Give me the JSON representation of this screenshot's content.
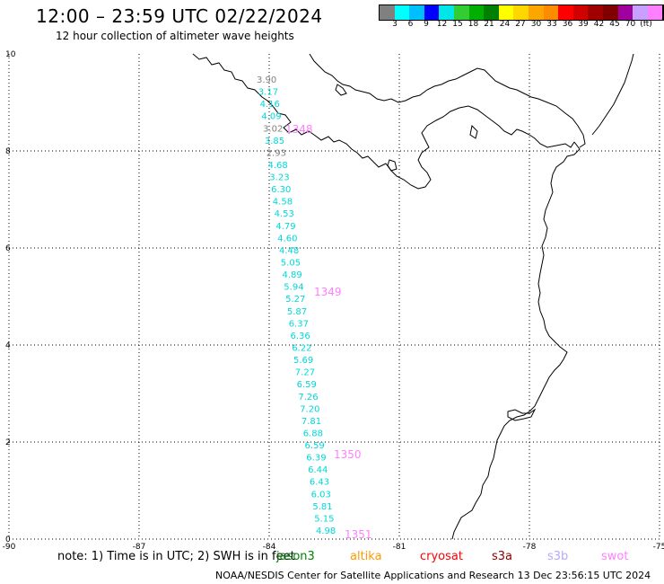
{
  "header": {
    "title": "12:00 – 23:59 UTC 02/22/2024",
    "subtitle": "12 hour collection of altimeter wave heights"
  },
  "scale": {
    "colors": [
      "#808080",
      "#00ffff",
      "#00bfff",
      "#0000ff",
      "#00e5e5",
      "#32cd32",
      "#00b000",
      "#008000",
      "#ffff00",
      "#ffd700",
      "#ffa500",
      "#ff8c00",
      "#ff0000",
      "#d00000",
      "#a00000",
      "#800000",
      "#a000a0",
      "#c8a0ff",
      "#ff80ff",
      "#000000"
    ],
    "labels": [
      "3",
      "6",
      "9",
      "12",
      "15",
      "18",
      "21",
      "24",
      "27",
      "30",
      "33",
      "36",
      "39",
      "42",
      "45",
      "70",
      "(ft)"
    ]
  },
  "axes": {
    "x_ticks": [
      "-90",
      "-87",
      "-84",
      "-81",
      "-78",
      "-75"
    ],
    "y_ticks": [
      "10",
      "8",
      "6",
      "4",
      "2",
      "0"
    ]
  },
  "wave_heights": [
    {
      "v": "3.90",
      "c": "#808080"
    },
    {
      "v": "3.17",
      "c": "#00d8d8"
    },
    {
      "v": "4.16",
      "c": "#00d8d8"
    },
    {
      "v": "4.09",
      "c": "#00d8d8"
    },
    {
      "v": "3.02",
      "c": "#808080"
    },
    {
      "v": "3.85",
      "c": "#00d8d8"
    },
    {
      "v": "2.93",
      "c": "#808080"
    },
    {
      "v": "4.68",
      "c": "#00d8d8"
    },
    {
      "v": "3.23",
      "c": "#00d8d8"
    },
    {
      "v": "6.30",
      "c": "#00d8d8"
    },
    {
      "v": "4.58",
      "c": "#00d8d8"
    },
    {
      "v": "4.53",
      "c": "#00d8d8"
    },
    {
      "v": "4.79",
      "c": "#00d8d8"
    },
    {
      "v": "4.60",
      "c": "#00d8d8"
    },
    {
      "v": "4.48",
      "c": "#00d8d8"
    },
    {
      "v": "5.05",
      "c": "#00d8d8"
    },
    {
      "v": "4.89",
      "c": "#00d8d8"
    },
    {
      "v": "5.94",
      "c": "#00d8d8"
    },
    {
      "v": "5.27",
      "c": "#00d8d8"
    },
    {
      "v": "5.87",
      "c": "#00d8d8"
    },
    {
      "v": "6.37",
      "c": "#00d8d8"
    },
    {
      "v": "6.36",
      "c": "#00d8d8"
    },
    {
      "v": "6.22",
      "c": "#00d8d8"
    },
    {
      "v": "5.69",
      "c": "#00d8d8"
    },
    {
      "v": "7.27",
      "c": "#00d8d8"
    },
    {
      "v": "6.59",
      "c": "#00d8d8"
    },
    {
      "v": "7.26",
      "c": "#00d8d8"
    },
    {
      "v": "7.20",
      "c": "#00d8d8"
    },
    {
      "v": "7.81",
      "c": "#00d8d8"
    },
    {
      "v": "6.88",
      "c": "#00d8d8"
    },
    {
      "v": "6.59",
      "c": "#00d8d8"
    },
    {
      "v": "6.39",
      "c": "#00d8d8"
    },
    {
      "v": "6.44",
      "c": "#00d8d8"
    },
    {
      "v": "6.43",
      "c": "#00d8d8"
    },
    {
      "v": "6.03",
      "c": "#00d8d8"
    },
    {
      "v": "5.81",
      "c": "#00d8d8"
    },
    {
      "v": "5.15",
      "c": "#00d8d8"
    },
    {
      "v": "4.98",
      "c": "#00d8d8"
    }
  ],
  "passes": [
    "1348",
    "1349",
    "1350",
    "1351"
  ],
  "note": "note:  1) Time is in UTC;  2) SWH is in feet",
  "satellites": [
    {
      "name": "jason3",
      "color": "#008000"
    },
    {
      "name": "altika",
      "color": "#ff9900"
    },
    {
      "name": "cryosat",
      "color": "#ff0000"
    },
    {
      "name": "s3a",
      "color": "#8b0000"
    },
    {
      "name": "s3b",
      "color": "#b8a8ff"
    },
    {
      "name": "swot",
      "color": "#ff80ff"
    }
  ],
  "footer": "NOAA/NESDIS Center for Satellite Applications and Research    13 Dec 23:56:15 UTC 2024"
}
